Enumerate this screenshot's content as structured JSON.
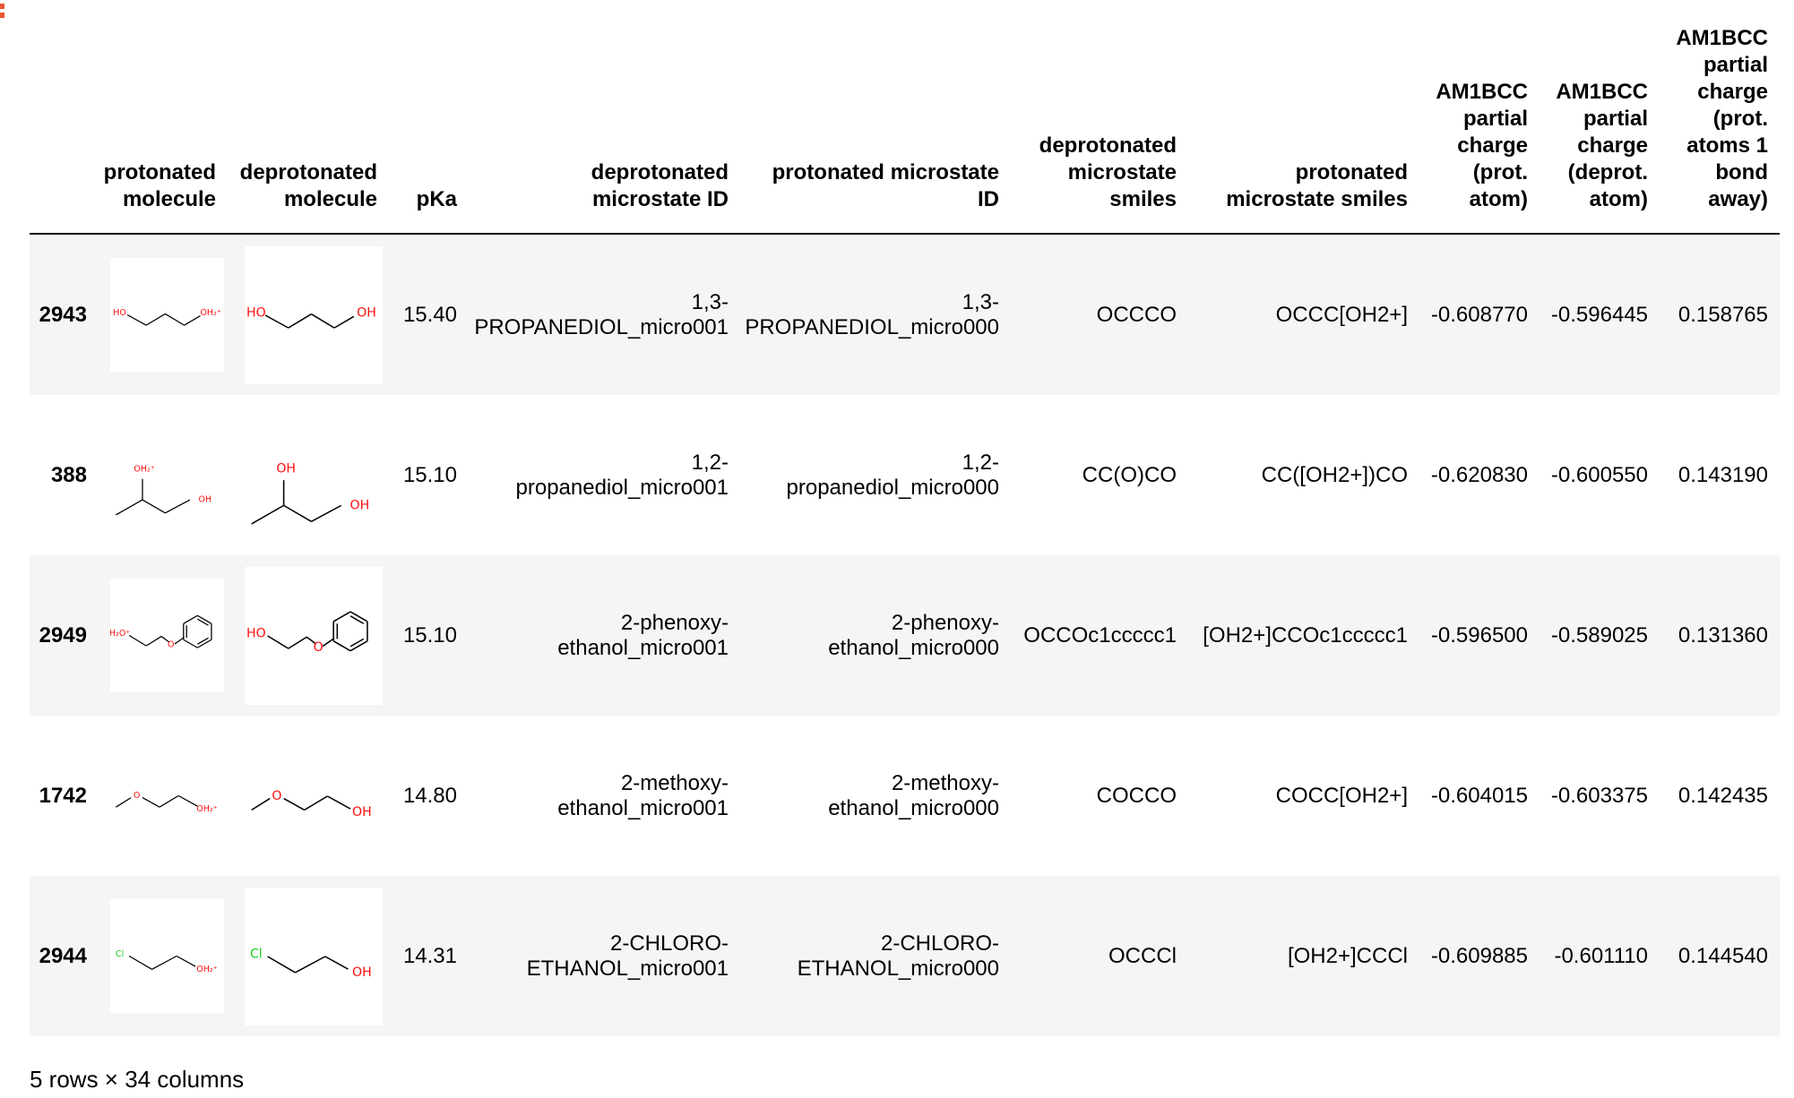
{
  "table": {
    "columns": [
      "protonated\nmolecule",
      "deprotonated\nmolecule",
      "pKa",
      "deprotonated\nmicrostate ID",
      "protonated microstate\nID",
      "deprotonated\nmicrostate\nsmiles",
      "protonated\nmicrostate smiles",
      "AM1BCC\npartial\ncharge\n(prot.\natom)",
      "AM1BCC\npartial\ncharge\n(deprot.\natom)",
      "AM1BCC\npartial\ncharge\n(prot.\natoms 1\nbond\naway)"
    ],
    "rows": [
      {
        "index": "2943",
        "protonated_molecule": [
          "HO",
          "OH₂⁺"
        ],
        "deprotonated_molecule": [
          "HO",
          "OH"
        ],
        "cells": [
          "15.40",
          "1,3-\nPROPANEDIOL_micro001",
          "1,3-\nPROPANEDIOL_micro000",
          "OCCCO",
          "OCCC[OH2+]",
          "-0.608770",
          "-0.596445",
          "0.158765"
        ]
      },
      {
        "index": "388",
        "protonated_molecule": [
          "OH₂⁺",
          "OH"
        ],
        "deprotonated_molecule": [
          "OH",
          "OH"
        ],
        "cells": [
          "15.10",
          "1,2-\npropanediol_micro001",
          "1,2-\npropanediol_micro000",
          "CC(O)CO",
          "CC([OH2+])CO",
          "-0.620830",
          "-0.600550",
          "0.143190"
        ]
      },
      {
        "index": "2949",
        "protonated_molecule": [
          "H₂O⁺",
          "O"
        ],
        "deprotonated_molecule": [
          "HO",
          "O"
        ],
        "cells": [
          "15.10",
          "2-phenoxy-\nethanol_micro001",
          "2-phenoxy-\nethanol_micro000",
          "OCCOc1ccccc1",
          "[OH2+]CCOc1ccccc1",
          "-0.596500",
          "-0.589025",
          "0.131360"
        ]
      },
      {
        "index": "1742",
        "protonated_molecule": [
          "O",
          "OH₂⁺"
        ],
        "deprotonated_molecule": [
          "O",
          "OH"
        ],
        "cells": [
          "14.80",
          "2-methoxy-\nethanol_micro001",
          "2-methoxy-\nethanol_micro000",
          "COCCO",
          "COCC[OH2+]",
          "-0.604015",
          "-0.603375",
          "0.142435"
        ]
      },
      {
        "index": "2944",
        "protonated_molecule": [
          "Cl",
          "OH₂⁺"
        ],
        "deprotonated_molecule": [
          "Cl",
          "OH"
        ],
        "cells": [
          "14.31",
          "2-CHLORO-\nETHANOL_micro001",
          "2-CHLORO-\nETHANOL_micro000",
          "OCCCl",
          "[OH2+]CCCl",
          "-0.609885",
          "-0.601110",
          "0.144540"
        ]
      }
    ]
  },
  "footer": "5 rows × 34 columns"
}
